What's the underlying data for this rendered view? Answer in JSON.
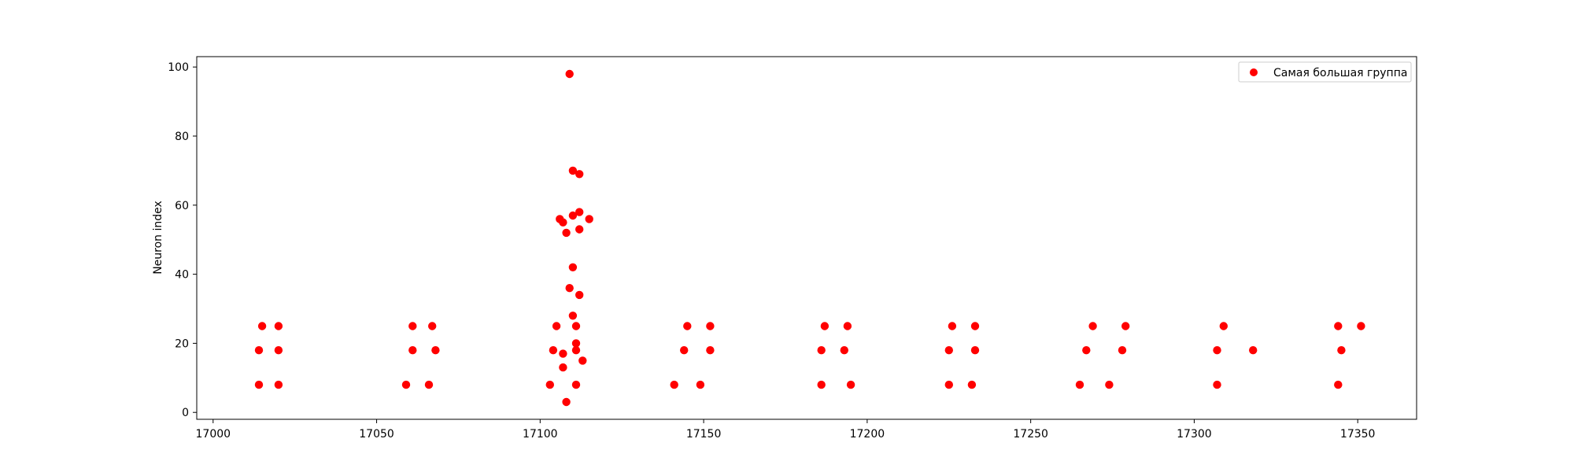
{
  "chart_data": {
    "type": "scatter",
    "title": "",
    "xlabel": "",
    "ylabel": "Neuron index",
    "xlim": [
      16995,
      17368
    ],
    "ylim": [
      -2,
      103
    ],
    "xticks": [
      17000,
      17050,
      17100,
      17150,
      17200,
      17250,
      17300,
      17350
    ],
    "yticks": [
      0,
      20,
      40,
      60,
      80,
      100
    ],
    "grid": false,
    "legend_position": "top-right",
    "series": [
      {
        "name": "Самая большая группа",
        "color": "#ff0000",
        "points": [
          [
            17014,
            8
          ],
          [
            17014,
            18
          ],
          [
            17015,
            25
          ],
          [
            17020,
            25
          ],
          [
            17020,
            18
          ],
          [
            17020,
            8
          ],
          [
            17059,
            8
          ],
          [
            17061,
            25
          ],
          [
            17061,
            18
          ],
          [
            17066,
            8
          ],
          [
            17067,
            25
          ],
          [
            17068,
            18
          ],
          [
            17103,
            8
          ],
          [
            17104,
            18
          ],
          [
            17105,
            25
          ],
          [
            17106,
            56
          ],
          [
            17107,
            55
          ],
          [
            17107,
            17
          ],
          [
            17107,
            13
          ],
          [
            17108,
            52
          ],
          [
            17108,
            3
          ],
          [
            17109,
            98
          ],
          [
            17109,
            36
          ],
          [
            17110,
            70
          ],
          [
            17110,
            57
          ],
          [
            17110,
            28
          ],
          [
            17110,
            42
          ],
          [
            17111,
            25
          ],
          [
            17111,
            20
          ],
          [
            17111,
            18
          ],
          [
            17111,
            8
          ],
          [
            17112,
            58
          ],
          [
            17112,
            69
          ],
          [
            17112,
            53
          ],
          [
            17112,
            34
          ],
          [
            17113,
            15
          ],
          [
            17115,
            56
          ],
          [
            17141,
            8
          ],
          [
            17144,
            18
          ],
          [
            17145,
            25
          ],
          [
            17149,
            8
          ],
          [
            17152,
            25
          ],
          [
            17152,
            18
          ],
          [
            17186,
            8
          ],
          [
            17186,
            18
          ],
          [
            17187,
            25
          ],
          [
            17193,
            18
          ],
          [
            17194,
            25
          ],
          [
            17195,
            8
          ],
          [
            17225,
            8
          ],
          [
            17225,
            18
          ],
          [
            17226,
            25
          ],
          [
            17232,
            8
          ],
          [
            17233,
            18
          ],
          [
            17233,
            25
          ],
          [
            17265,
            8
          ],
          [
            17267,
            18
          ],
          [
            17269,
            25
          ],
          [
            17274,
            8
          ],
          [
            17278,
            18
          ],
          [
            17279,
            25
          ],
          [
            17307,
            8
          ],
          [
            17307,
            18
          ],
          [
            17309,
            25
          ],
          [
            17318,
            18
          ],
          [
            17344,
            25
          ],
          [
            17344,
            8
          ],
          [
            17345,
            18
          ],
          [
            17351,
            25
          ]
        ]
      }
    ]
  }
}
